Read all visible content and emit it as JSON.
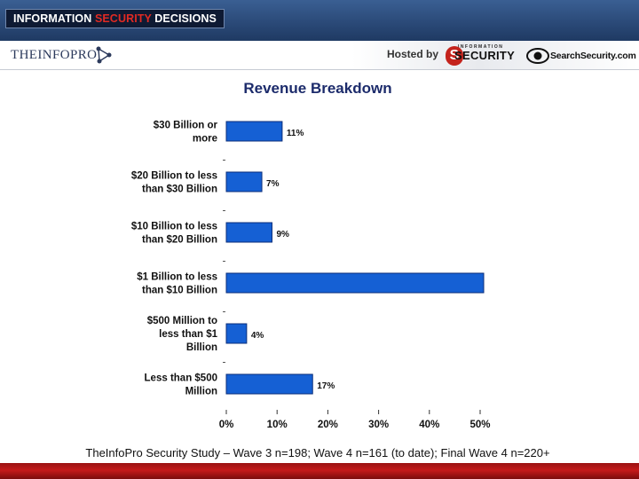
{
  "header": {
    "banner_part1": "INFORMATION",
    "banner_accent": "SECURITY",
    "banner_part2": "DECISIONS",
    "infopro_logo_text": "THEINFOPRO",
    "hosted_by": "Hosted by",
    "security_small": "INFORMATION",
    "security_logo_text": "SECURITY",
    "searchsecurity_logo_text": "SearchSecurity.com"
  },
  "chart_data": {
    "type": "bar",
    "orientation": "horizontal",
    "title": "Revenue Breakdown",
    "categories": [
      [
        "$30 Billion or",
        "more"
      ],
      [
        "$20 Billion to less",
        "than $30 Billion"
      ],
      [
        "$10 Billion to less",
        "than $20 Billion"
      ],
      [
        "$1 Billion to less",
        "than $10 Billion"
      ],
      [
        "$500 Million to",
        "less than $1",
        "Billion"
      ],
      [
        "Less than $500",
        "Million"
      ]
    ],
    "values": [
      11,
      7,
      9,
      51,
      4,
      17
    ],
    "value_labels": [
      "11%",
      "7%",
      "9%",
      "",
      "4%",
      "17%"
    ],
    "xlim": [
      0,
      50
    ],
    "x_ticks": [
      "0%",
      "10%",
      "20%",
      "30%",
      "40%",
      "50%"
    ],
    "x_tick_values": [
      0,
      10,
      20,
      30,
      40,
      50
    ],
    "xlabel": "",
    "ylabel": "",
    "bar_color": "#1560d4",
    "bar_edge_color": "#0b2e7a"
  },
  "footer": {
    "note": "TheInfoPro Security Study – Wave 3 n=198; Wave 4 n=161 (to date); Final Wave 4 n=220+"
  }
}
